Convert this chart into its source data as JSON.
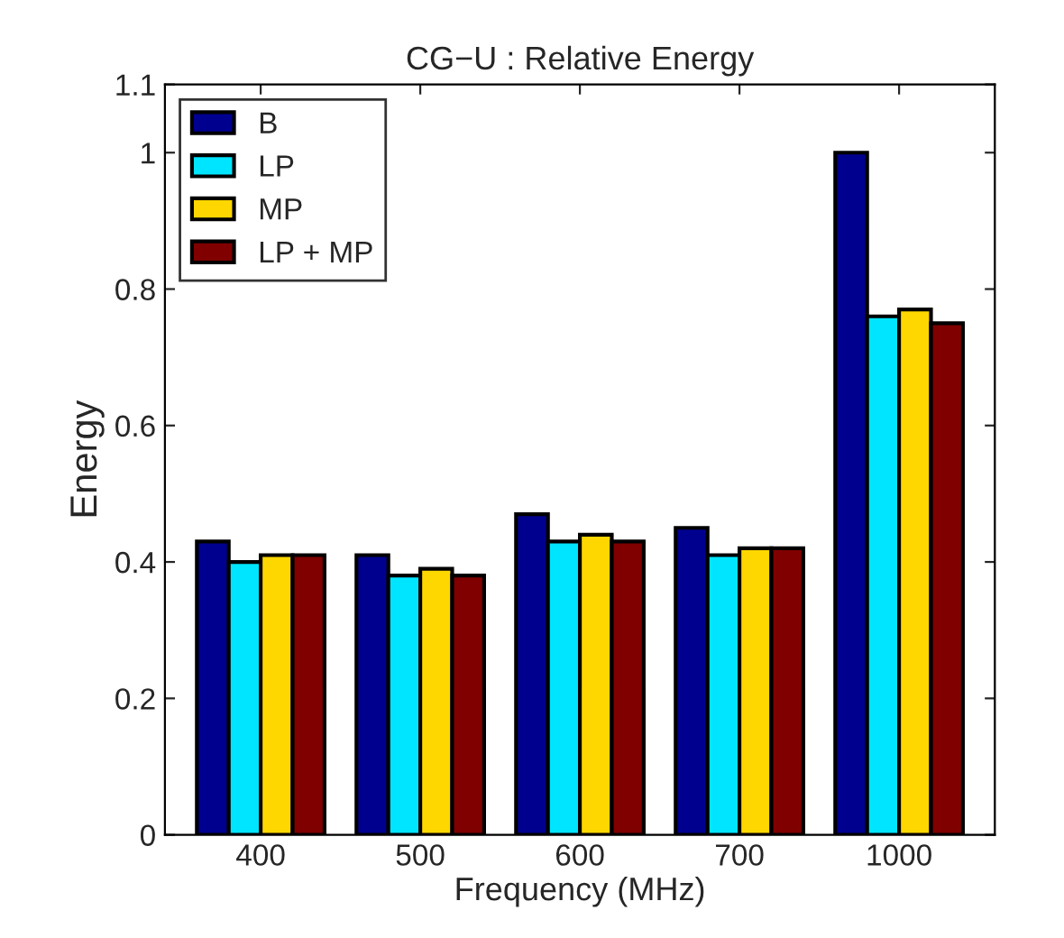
{
  "chart_data": {
    "type": "bar",
    "title": "CG−U : Relative Energy",
    "xlabel": "Frequency (MHz)",
    "ylabel": "Energy",
    "categories": [
      "400",
      "500",
      "600",
      "700",
      "1000"
    ],
    "series": [
      {
        "name": "B",
        "color": "#00008f",
        "values": [
          0.43,
          0.41,
          0.47,
          0.45,
          1.0
        ]
      },
      {
        "name": "LP",
        "color": "#00e5ff",
        "values": [
          0.4,
          0.38,
          0.43,
          0.41,
          0.76
        ]
      },
      {
        "name": "MP",
        "color": "#ffd700",
        "values": [
          0.41,
          0.39,
          0.44,
          0.42,
          0.77
        ]
      },
      {
        "name": "LP + MP",
        "color": "#800000",
        "values": [
          0.41,
          0.38,
          0.43,
          0.42,
          0.75
        ]
      }
    ],
    "ylim": [
      0,
      1.1
    ],
    "yticks": [
      0,
      0.2,
      0.4,
      0.6,
      0.8,
      1,
      1.1
    ],
    "grid": false,
    "legend": "top left"
  }
}
